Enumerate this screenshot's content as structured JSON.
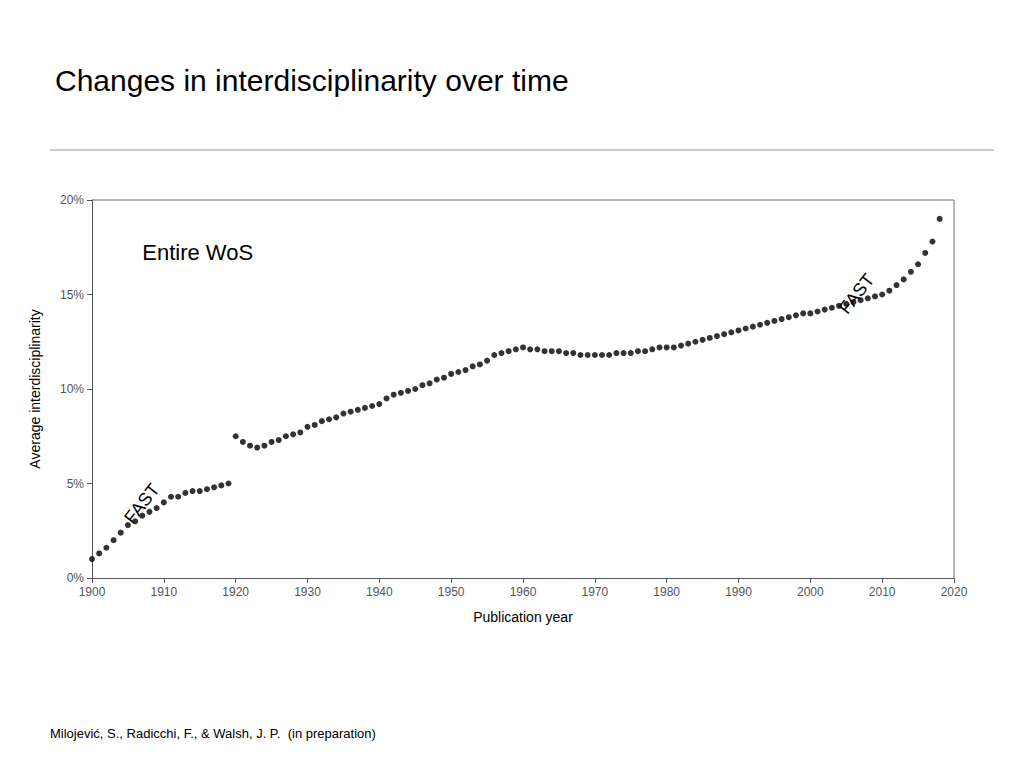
{
  "chart_data": {
    "type": "scatter",
    "title": "Changes in interdisciplinarity over time",
    "x_label": "Publication year",
    "y_label": "Average interdisciplinarity",
    "footer": "Milojević, S., Radicchi, F., & Walsh, J. P.  (in preparation)",
    "annotations": [
      {
        "text": "Entire WoS",
        "x": 1907,
        "y": 0.178
      },
      {
        "text": "FAST",
        "x": 1906,
        "y": 0.027
      },
      {
        "text": "FAST",
        "x": 2005.5,
        "y": 0.138
      }
    ],
    "x": [
      1900,
      1901,
      1902,
      1903,
      1904,
      1905,
      1906,
      1907,
      1908,
      1909,
      1910,
      1911,
      1912,
      1913,
      1914,
      1915,
      1916,
      1917,
      1918,
      1919,
      1920,
      1921,
      1922,
      1923,
      1924,
      1925,
      1926,
      1927,
      1928,
      1929,
      1930,
      1931,
      1932,
      1933,
      1934,
      1935,
      1936,
      1937,
      1938,
      1939,
      1940,
      1941,
      1942,
      1943,
      1944,
      1945,
      1946,
      1947,
      1948,
      1949,
      1950,
      1951,
      1952,
      1953,
      1954,
      1955,
      1956,
      1957,
      1958,
      1959,
      1960,
      1961,
      1962,
      1963,
      1964,
      1965,
      1966,
      1967,
      1968,
      1969,
      1970,
      1971,
      1972,
      1973,
      1974,
      1975,
      1976,
      1977,
      1978,
      1979,
      1980,
      1981,
      1982,
      1983,
      1984,
      1985,
      1986,
      1987,
      1988,
      1989,
      1990,
      1991,
      1992,
      1993,
      1994,
      1995,
      1996,
      1997,
      1998,
      1999,
      2000,
      2001,
      2002,
      2003,
      2004,
      2005,
      2006,
      2007,
      2008,
      2009,
      2010,
      2011,
      2012,
      2013,
      2014,
      2015,
      2016,
      2017,
      2018
    ],
    "values": [
      0.01,
      0.013,
      0.016,
      0.02,
      0.024,
      0.028,
      0.03,
      0.033,
      0.035,
      0.037,
      0.04,
      0.043,
      0.043,
      0.045,
      0.046,
      0.046,
      0.047,
      0.048,
      0.049,
      0.05,
      0.075,
      0.072,
      0.07,
      0.069,
      0.07,
      0.072,
      0.073,
      0.075,
      0.076,
      0.077,
      0.08,
      0.081,
      0.083,
      0.084,
      0.085,
      0.087,
      0.088,
      0.089,
      0.09,
      0.091,
      0.092,
      0.095,
      0.097,
      0.098,
      0.099,
      0.1,
      0.102,
      0.103,
      0.105,
      0.106,
      0.108,
      0.109,
      0.11,
      0.112,
      0.113,
      0.115,
      0.118,
      0.119,
      0.12,
      0.121,
      0.122,
      0.121,
      0.121,
      0.12,
      0.12,
      0.12,
      0.119,
      0.119,
      0.118,
      0.118,
      0.118,
      0.118,
      0.118,
      0.119,
      0.119,
      0.119,
      0.12,
      0.12,
      0.121,
      0.122,
      0.122,
      0.122,
      0.123,
      0.124,
      0.125,
      0.126,
      0.127,
      0.128,
      0.129,
      0.13,
      0.131,
      0.132,
      0.133,
      0.134,
      0.135,
      0.136,
      0.137,
      0.138,
      0.139,
      0.14,
      0.14,
      0.141,
      0.142,
      0.143,
      0.144,
      0.145,
      0.146,
      0.147,
      0.148,
      0.149,
      0.15,
      0.152,
      0.155,
      0.158,
      0.162,
      0.166,
      0.172,
      0.178,
      0.19
    ],
    "color": "#000000",
    "marker": "circle",
    "xlim": [
      1900,
      2020
    ],
    "xticks": [
      1900,
      1910,
      1920,
      1930,
      1940,
      1950,
      1960,
      1970,
      1980,
      1990,
      2000,
      2010,
      2020
    ],
    "ylim": [
      0,
      0.2
    ],
    "yticks": [
      {
        "value": 0.0,
        "label": "0%"
      },
      {
        "value": 0.05,
        "label": "5%"
      },
      {
        "value": 0.1,
        "label": "10%"
      },
      {
        "value": 0.15,
        "label": "15%"
      },
      {
        "value": 0.2,
        "label": "20%"
      }
    ],
    "grid": false
  }
}
